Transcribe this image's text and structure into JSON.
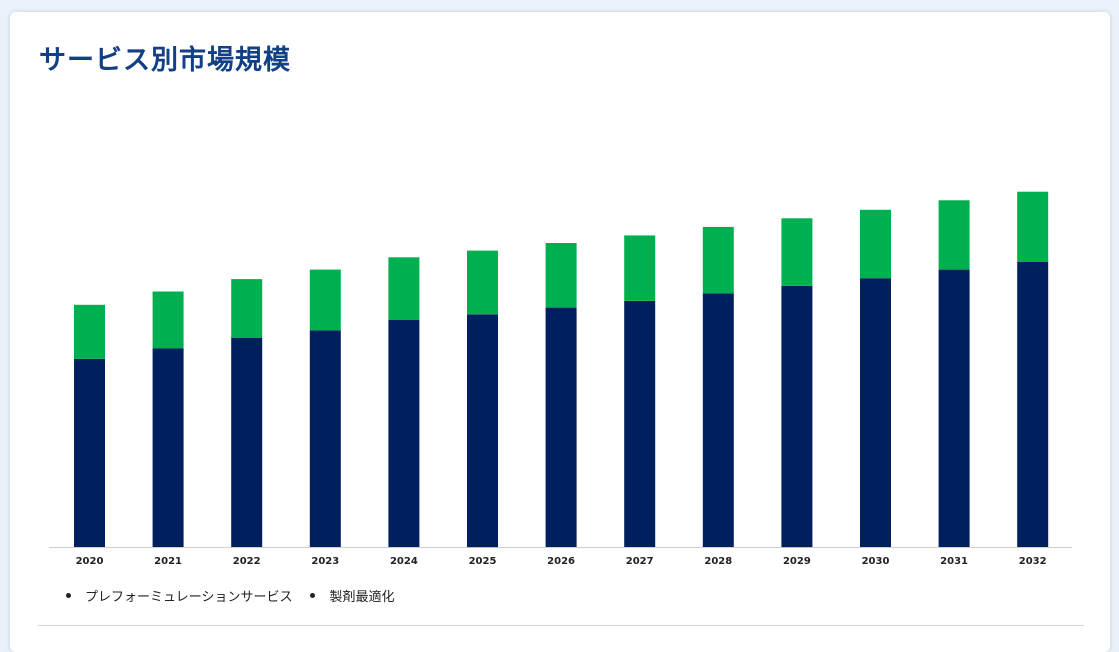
{
  "title": "サービス別市場規模",
  "legend": [
    {
      "label": "プレフォーミュレーションサービス",
      "color": "#001f5f"
    },
    {
      "label": "製剤最適化",
      "color": "#00b050"
    }
  ],
  "chart_data": {
    "type": "bar",
    "stacked": true,
    "title": "サービス別市場規模",
    "categories": [
      "2020",
      "2021",
      "2022",
      "2023",
      "2024",
      "2025",
      "2026",
      "2027",
      "2028",
      "2029",
      "2030",
      "2031",
      "2032"
    ],
    "series": [
      {
        "name": "プレフォーミュレーションサービス",
        "color": "#001f5f",
        "values": [
          198,
          209,
          220,
          228,
          239,
          245,
          252,
          259,
          267,
          275,
          283,
          292,
          300
        ]
      },
      {
        "name": "製剤最適化",
        "color": "#00b050",
        "values": [
          57,
          60,
          62,
          64,
          66,
          67,
          68,
          69,
          70,
          71,
          72,
          73,
          74
        ]
      }
    ],
    "ylim": [
      0,
      400
    ],
    "grid": false,
    "legend_position": "bottom-left"
  }
}
